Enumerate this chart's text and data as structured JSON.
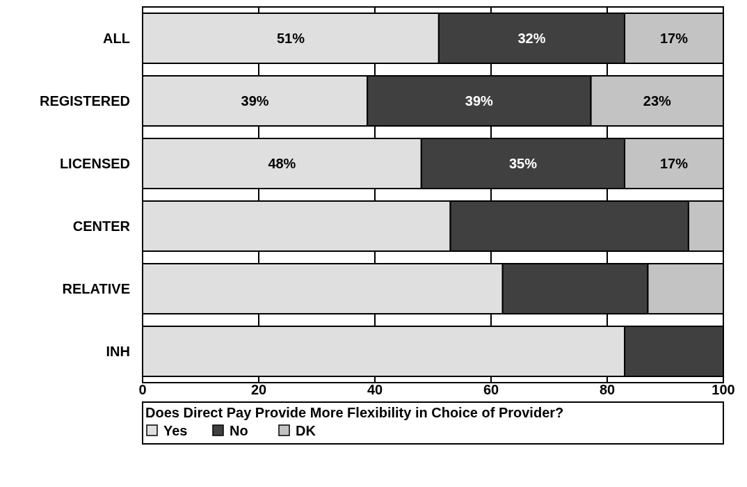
{
  "chart_data": {
    "type": "bar",
    "orientation": "horizontal",
    "stacked": true,
    "categories": [
      "ALL",
      "REGISTERED",
      "LICENSED",
      "CENTER",
      "RELATIVE",
      "INH"
    ],
    "series": [
      {
        "name": "Yes",
        "color": "#dfdfdf",
        "values": [
          51,
          38.7,
          48,
          53,
          62,
          83
        ],
        "value_labels": [
          "51%",
          "39%",
          "48%",
          null,
          null,
          null
        ]
      },
      {
        "name": "No",
        "color": "#404040",
        "values": [
          32,
          38.5,
          35,
          41,
          25,
          17
        ],
        "value_labels": [
          "32%",
          "39%",
          "35%",
          null,
          null,
          null
        ]
      },
      {
        "name": "DK",
        "color": "#c3c3c3",
        "values": [
          17,
          22.8,
          17,
          6,
          13,
          0
        ],
        "value_labels": [
          "17%",
          "23%",
          "17%",
          null,
          null,
          null
        ]
      }
    ],
    "xlim": [
      0,
      100
    ],
    "xticks": [
      0,
      20,
      40,
      60,
      80,
      100
    ],
    "grid": "x",
    "legend": "bottom",
    "legend_title": "Does Direct Pay Provide More Flexibility in Choice of Provider?"
  }
}
